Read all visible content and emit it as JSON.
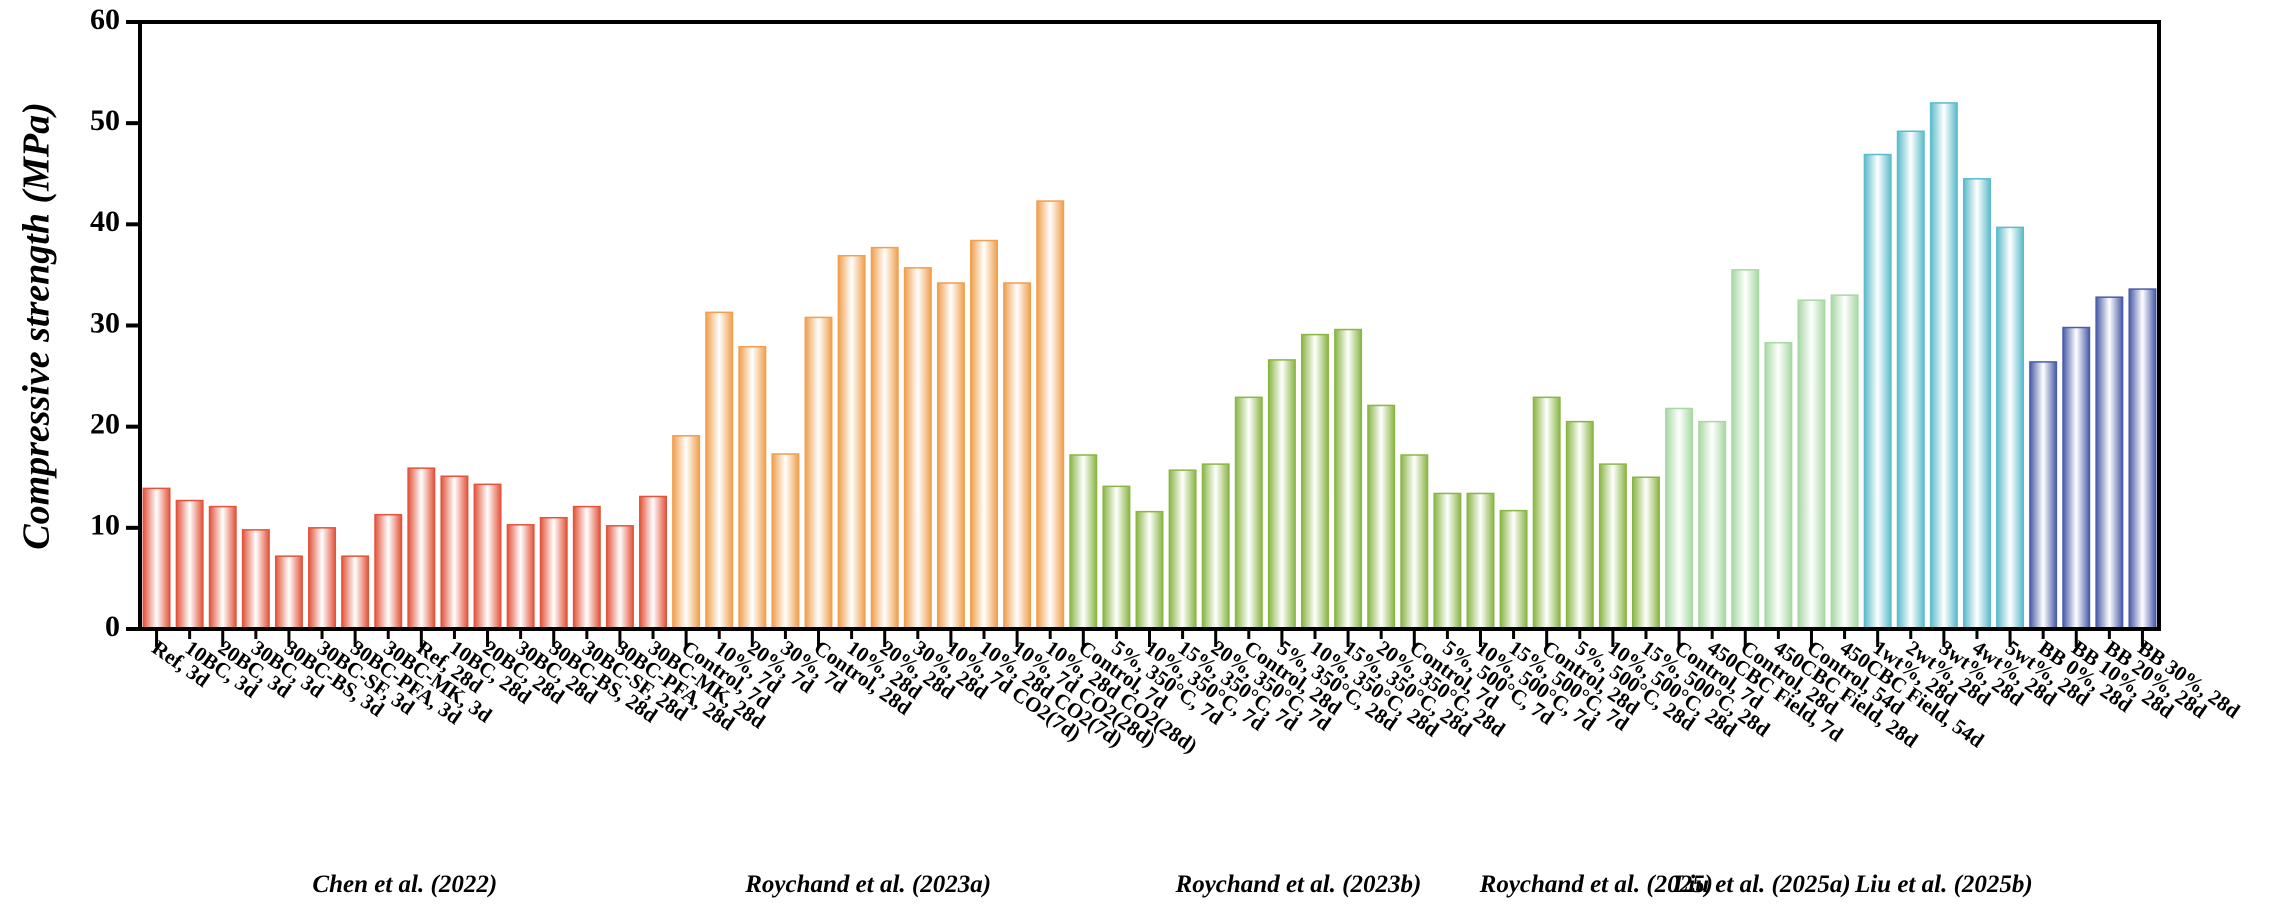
{
  "chart_data": {
    "type": "bar",
    "ylabel": "Compressive strength (MPa)",
    "ylim": [
      0,
      60
    ],
    "yticks": [
      0,
      10,
      20,
      30,
      40,
      50,
      60
    ],
    "groups": [
      {
        "name": "Chen et al. (2022)",
        "color": "#e2553c",
        "categories": [
          "Ref, 3d",
          "10BC, 3d",
          "20BC, 3d",
          "30BC, 3d",
          "30BC-BS, 3d",
          "30BC-SF, 3d",
          "30BC-PFA, 3d",
          "30BC-MK, 3d",
          "Ref, 28d",
          "10BC, 28d",
          "20BC, 28d",
          "30BC, 28d",
          "30BC-BS, 28d",
          "30BC-SF, 28d",
          "30BC-PFA, 28d",
          "30BC-MK, 28d"
        ],
        "values": [
          13.9,
          12.7,
          12.1,
          9.8,
          7.2,
          10.0,
          7.2,
          11.3,
          15.9,
          15.1,
          14.3,
          10.3,
          11.0,
          12.1,
          10.2,
          13.1
        ]
      },
      {
        "name": "Roychand et al. (2023a)",
        "color": "#f0a04e",
        "categories": [
          "Control, 7d",
          "10%, 7d",
          "20%, 7d",
          "30%, 7d",
          "Control, 28d",
          "10%, 28d",
          "20%, 28d",
          "30%, 28d",
          "10%, 7d CO2(7d)",
          "10%, 28d CO2(7d)",
          "10%, 7d CO2(28d)",
          "10%, 28d CO2(28d)"
        ],
        "values": [
          19.1,
          31.3,
          27.9,
          17.3,
          30.8,
          36.9,
          37.7,
          35.7,
          34.2,
          38.4,
          34.2,
          42.3
        ]
      },
      {
        "name": "Roychand et al. (2023b)",
        "color": "#8ab646",
        "categories": [
          "Control, 7d",
          "5%, 350°C, 7d",
          "10%, 350°C, 7d",
          "15%, 350°C, 7d",
          "20%, 350°C, 7d",
          "Control, 28d",
          "5%, 350°C, 28d",
          "10%, 350°C, 28d",
          "15%, 350°C, 28d",
          "20%, 350°C, 28d",
          "Control, 7d",
          "5%, 500°C, 7d",
          "10%, 500°C, 7d",
          "15%, 500°C, 7d"
        ],
        "values": [
          17.2,
          14.1,
          11.6,
          15.7,
          16.3,
          22.9,
          26.6,
          29.1,
          29.6,
          22.1,
          17.2,
          13.4,
          13.4,
          11.7
        ]
      },
      {
        "name": "Roychand et al. (2025)",
        "color": "#8ab646",
        "categories": [
          "Control, 28d",
          "5%, 500°C, 28d",
          "10%, 500°C, 28d",
          "15%, 500°C, 28d"
        ],
        "values": [
          22.9,
          20.5,
          16.3,
          15.0
        ]
      },
      {
        "name": "Liu et al. (2025a)",
        "color": "#a8d8a4",
        "categories": [
          "Control, 7d",
          "450CBC Field, 7d",
          "Control, 28d",
          "450CBC Field, 28d",
          "Control, 54d",
          "450CBC Field, 54d"
        ],
        "values": [
          21.8,
          20.5,
          35.5,
          28.3,
          32.5,
          33.0
        ]
      },
      {
        "name": "Liu et al. (2025b)",
        "color": "#5cbccb",
        "categories": [
          "1wt%, 28d",
          "2wt%, 28d",
          "3wt%, 28d",
          "4wt%, 28d",
          "5wt%, 28d"
        ],
        "values": [
          46.9,
          49.2,
          52.0,
          44.5,
          39.7
        ]
      },
      {
        "name": null,
        "color": "#4a5ca8",
        "categories": [
          "BB 0%, 28d",
          "BB 10%, 28d",
          "BB 20%, 28d",
          "BB 30%, 28d"
        ],
        "values": [
          26.4,
          29.8,
          32.8,
          33.6
        ]
      }
    ]
  }
}
